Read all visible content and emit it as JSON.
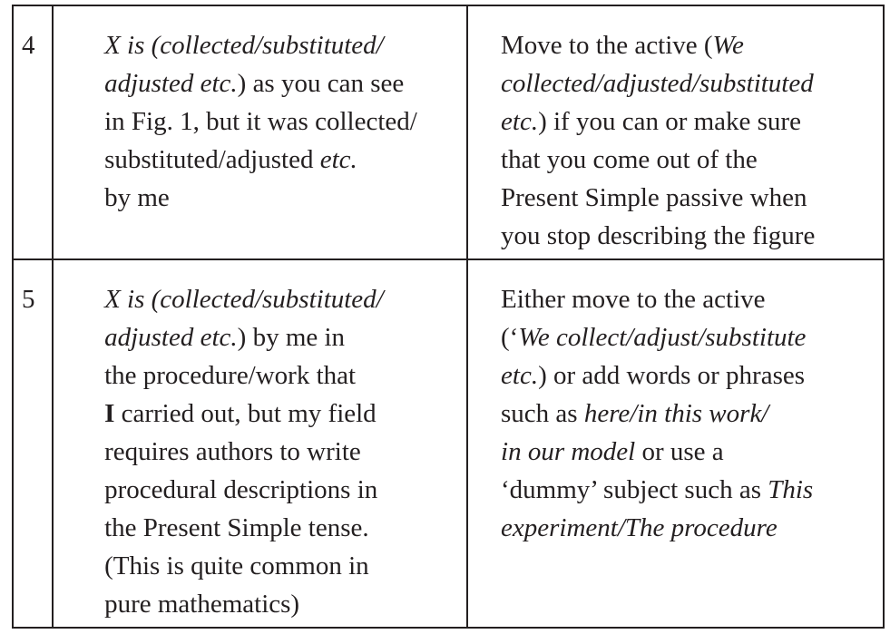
{
  "rows": [
    {
      "number": "4",
      "situation": [
        [
          {
            "t": "X is (collected/substituted/",
            "s": "i"
          }
        ],
        [
          {
            "t": "adjusted etc.",
            "s": "i"
          },
          {
            "t": ") as you can see",
            "s": ""
          }
        ],
        [
          {
            "t": "in Fig. 1, but it was collected/",
            "s": ""
          }
        ],
        [
          {
            "t": "substituted/adjusted ",
            "s": ""
          },
          {
            "t": "etc.",
            "s": "i"
          }
        ],
        [
          {
            "t": "by me",
            "s": ""
          }
        ]
      ],
      "action": [
        [
          {
            "t": "Move to the active (",
            "s": ""
          },
          {
            "t": "We",
            "s": "i"
          }
        ],
        [
          {
            "t": "collected/adjusted/substituted",
            "s": "i"
          }
        ],
        [
          {
            "t": "etc.",
            "s": "i"
          },
          {
            "t": ") if you can or make sure",
            "s": ""
          }
        ],
        [
          {
            "t": "that you come out of the",
            "s": ""
          }
        ],
        [
          {
            "t": "Present Simple passive when",
            "s": ""
          }
        ],
        [
          {
            "t": "you stop describing the figure",
            "s": ""
          }
        ]
      ]
    },
    {
      "number": "5",
      "situation": [
        [
          {
            "t": "X is (collected/substituted/",
            "s": "i"
          }
        ],
        [
          {
            "t": "adjusted etc.",
            "s": "i"
          },
          {
            "t": ") by me in",
            "s": ""
          }
        ],
        [
          {
            "t": "the procedure/work that",
            "s": ""
          }
        ],
        [
          {
            "t": "I",
            "s": "b"
          },
          {
            "t": " carried out, but my field",
            "s": ""
          }
        ],
        [
          {
            "t": "requires authors to write",
            "s": ""
          }
        ],
        [
          {
            "t": "procedural descriptions in",
            "s": ""
          }
        ],
        [
          {
            "t": "the Present Simple tense.",
            "s": ""
          }
        ],
        [
          {
            "t": "(This is quite common in",
            "s": ""
          }
        ],
        [
          {
            "t": "pure mathematics)",
            "s": ""
          }
        ]
      ],
      "action": [
        [
          {
            "t": "Either move to the active",
            "s": ""
          }
        ],
        [
          {
            "t": "(‘",
            "s": ""
          },
          {
            "t": "We collect/adjust/substitute",
            "s": "i"
          }
        ],
        [
          {
            "t": "etc.",
            "s": "i"
          },
          {
            "t": ") or add words or phrases",
            "s": ""
          }
        ],
        [
          {
            "t": "such as ",
            "s": ""
          },
          {
            "t": "here/in this work/",
            "s": "i"
          }
        ],
        [
          {
            "t": "in our model",
            "s": "i"
          },
          {
            "t": " or use a",
            "s": ""
          }
        ],
        [
          {
            "t": "‘dummy’ subject such as ",
            "s": ""
          },
          {
            "t": "This",
            "s": "i"
          }
        ],
        [
          {
            "t": "experiment/The procedure",
            "s": "i"
          }
        ]
      ]
    }
  ]
}
